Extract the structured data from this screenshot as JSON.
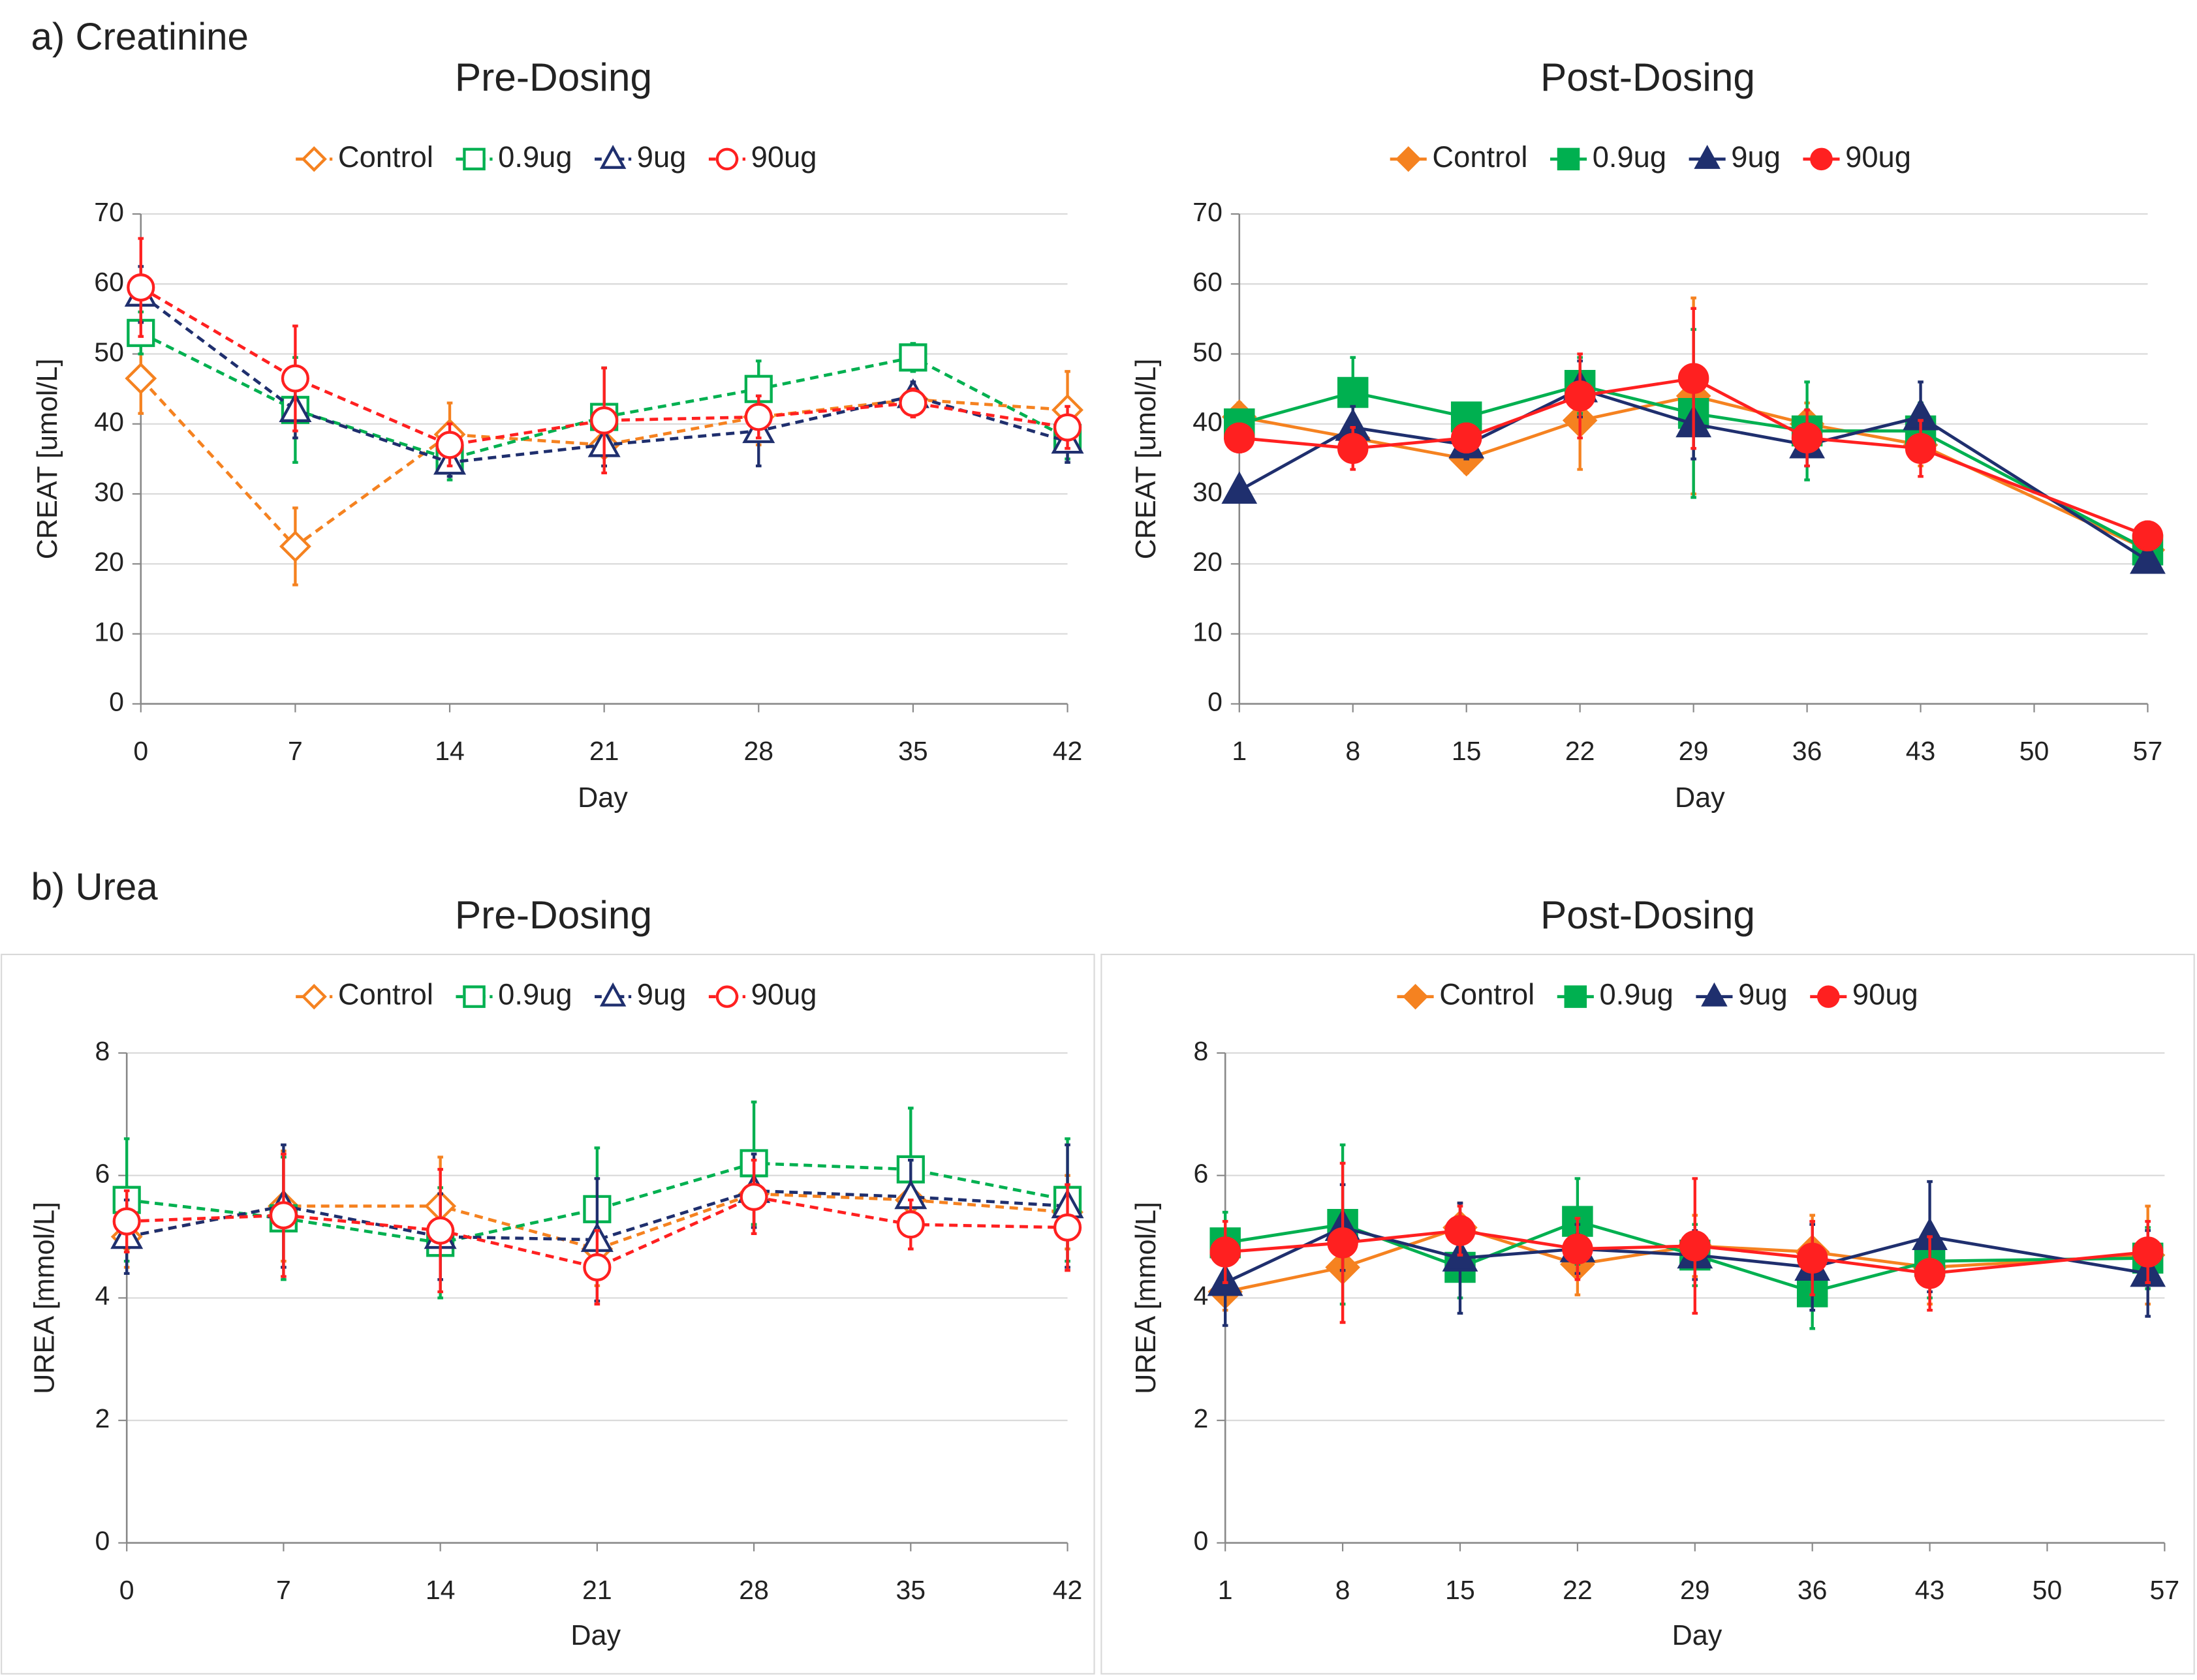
{
  "chart_data": [
    {
      "type": "line",
      "panel": "a) Creatinine",
      "title": "Pre-Dosing",
      "y_label": "CREAT [umol/L]",
      "x_label": "Day",
      "dashed": true,
      "filled": false,
      "grid": true,
      "x": [
        0,
        7,
        14,
        21,
        28,
        35,
        42
      ],
      "xlim": [
        0,
        42
      ],
      "xticks": [
        0,
        7,
        14,
        21,
        28,
        35,
        42
      ],
      "ylim": [
        0,
        70
      ],
      "yticks": [
        0,
        10,
        20,
        30,
        40,
        50,
        60,
        70
      ],
      "series": [
        {
          "name": "Control",
          "color": "#f58220",
          "marker": "diamond",
          "values": [
            46.5,
            22.5,
            38.5,
            37,
            41,
            43.5,
            42
          ],
          "errors": [
            5,
            5.5,
            4.5,
            3,
            4,
            2,
            5.5
          ]
        },
        {
          "name": "0.9ug",
          "color": "#00b050",
          "marker": "square",
          "values": [
            53,
            42,
            35,
            41,
            45,
            49.5,
            38
          ],
          "errors": [
            3,
            7.5,
            3,
            7,
            4,
            2,
            3
          ]
        },
        {
          "name": "9ug",
          "color": "#1f2f6e",
          "marker": "triangle",
          "values": [
            58.5,
            42,
            34.5,
            37,
            39,
            44,
            37.5
          ],
          "errors": [
            4,
            4,
            2,
            3,
            5,
            2,
            3
          ]
        },
        {
          "name": "90ug",
          "color": "#ff2020",
          "marker": "circle",
          "values": [
            59.5,
            46.5,
            37,
            40.5,
            41,
            43,
            39.5
          ],
          "errors": [
            7,
            7.5,
            3,
            7.5,
            3,
            2,
            3
          ]
        }
      ]
    },
    {
      "type": "line",
      "title": "Post-Dosing",
      "y_label": "CREAT [umol/L]",
      "x_label": "Day",
      "dashed": false,
      "filled": true,
      "grid": true,
      "x": [
        1,
        8,
        15,
        22,
        29,
        36,
        43,
        57
      ],
      "xlim": [
        1,
        57
      ],
      "xticks": [
        1,
        8,
        15,
        22,
        29,
        36,
        43,
        50,
        57
      ],
      "ylim": [
        0,
        70
      ],
      "yticks": [
        0,
        10,
        20,
        30,
        40,
        50,
        60,
        70
      ],
      "series": [
        {
          "name": "Control",
          "color": "#f58220",
          "marker": "diamond",
          "values": [
            41,
            38,
            35,
            40.5,
            44,
            40,
            37,
            22
          ],
          "errors": [
            2,
            3,
            2,
            7,
            14,
            3,
            3,
            2
          ]
        },
        {
          "name": "0.9ug",
          "color": "#00b050",
          "marker": "square",
          "values": [
            40,
            44.5,
            41,
            45.5,
            41.5,
            39,
            39,
            22
          ],
          "errors": [
            2,
            5,
            2,
            4,
            12,
            7,
            4,
            2
          ]
        },
        {
          "name": "9ug",
          "color": "#1f2f6e",
          "marker": "triangle",
          "values": [
            30.5,
            39.5,
            37,
            45,
            40,
            37,
            41,
            20.5
          ],
          "errors": [
            1,
            3,
            2,
            4,
            5,
            3,
            5,
            1
          ]
        },
        {
          "name": "90ug",
          "color": "#ff2020",
          "marker": "circle",
          "values": [
            38,
            36.5,
            38,
            44,
            46.5,
            38,
            36.5,
            24
          ],
          "errors": [
            2,
            3,
            2,
            6,
            10,
            4,
            4,
            2
          ]
        }
      ]
    },
    {
      "type": "line",
      "panel": "b) Urea",
      "title": "Pre-Dosing",
      "y_label": "UREA [mmol/L]",
      "x_label": "Day",
      "dashed": true,
      "filled": false,
      "grid": true,
      "x": [
        0,
        7,
        14,
        21,
        28,
        35,
        42
      ],
      "xlim": [
        0,
        42
      ],
      "xticks": [
        0,
        7,
        14,
        21,
        28,
        35,
        42
      ],
      "ylim": [
        0,
        8
      ],
      "yticks": [
        0,
        2,
        4,
        6,
        8
      ],
      "series": [
        {
          "name": "Control",
          "color": "#f58220",
          "marker": "diamond",
          "values": [
            5.0,
            5.5,
            5.5,
            4.8,
            5.7,
            5.6,
            5.4
          ],
          "errors": [
            0.5,
            0.9,
            0.8,
            0.6,
            0.5,
            0.5,
            0.6
          ]
        },
        {
          "name": "0.9ug",
          "color": "#00b050",
          "marker": "square",
          "values": [
            5.6,
            5.3,
            4.9,
            5.45,
            6.2,
            6.1,
            5.6
          ],
          "errors": [
            1.0,
            1.0,
            0.9,
            1.0,
            1.0,
            1.0,
            1.0
          ]
        },
        {
          "name": "9ug",
          "color": "#1f2f6e",
          "marker": "triangle",
          "values": [
            5.0,
            5.5,
            5.0,
            4.95,
            5.75,
            5.65,
            5.5
          ],
          "errors": [
            0.6,
            1.0,
            0.7,
            1.0,
            0.6,
            0.6,
            1.0
          ]
        },
        {
          "name": "90ug",
          "color": "#ff2020",
          "marker": "circle",
          "values": [
            5.25,
            5.35,
            5.1,
            4.5,
            5.65,
            5.2,
            5.15
          ],
          "errors": [
            0.5,
            1.0,
            1.0,
            0.6,
            0.6,
            0.4,
            0.7
          ]
        }
      ]
    },
    {
      "type": "line",
      "title": "Post-Dosing",
      "y_label": "UREA [mmol/L]",
      "x_label": "Day",
      "dashed": false,
      "filled": true,
      "grid": true,
      "x": [
        1,
        8,
        15,
        22,
        29,
        36,
        43,
        56
      ],
      "xlim": [
        1,
        57
      ],
      "xticks": [
        1,
        8,
        15,
        22,
        29,
        36,
        43,
        50,
        57
      ],
      "ylim": [
        0,
        8
      ],
      "yticks": [
        0,
        2,
        4,
        6,
        8
      ],
      "series": [
        {
          "name": "Control",
          "color": "#f58220",
          "marker": "diamond",
          "values": [
            4.1,
            4.5,
            5.15,
            4.55,
            4.85,
            4.75,
            4.5,
            4.7
          ],
          "errors": [
            0.3,
            0.9,
            0.4,
            0.5,
            0.5,
            0.6,
            0.6,
            0.8
          ]
        },
        {
          "name": "0.9ug",
          "color": "#00b050",
          "marker": "square",
          "values": [
            4.9,
            5.2,
            4.5,
            5.25,
            4.7,
            4.1,
            4.6,
            4.65
          ],
          "errors": [
            0.5,
            1.3,
            0.5,
            0.7,
            0.5,
            0.6,
            0.6,
            0.5
          ]
        },
        {
          "name": "9ug",
          "color": "#1f2f6e",
          "marker": "triangle",
          "values": [
            4.25,
            5.15,
            4.65,
            4.8,
            4.7,
            4.5,
            5.0,
            4.4
          ],
          "errors": [
            0.7,
            0.7,
            0.9,
            0.4,
            0.4,
            0.7,
            0.9,
            0.7
          ]
        },
        {
          "name": "90ug",
          "color": "#ff2020",
          "marker": "circle",
          "values": [
            4.75,
            4.9,
            5.1,
            4.8,
            4.85,
            4.65,
            4.4,
            4.75
          ],
          "errors": [
            0.5,
            1.3,
            0.4,
            0.5,
            1.1,
            0.6,
            0.6,
            0.5
          ]
        }
      ]
    }
  ]
}
